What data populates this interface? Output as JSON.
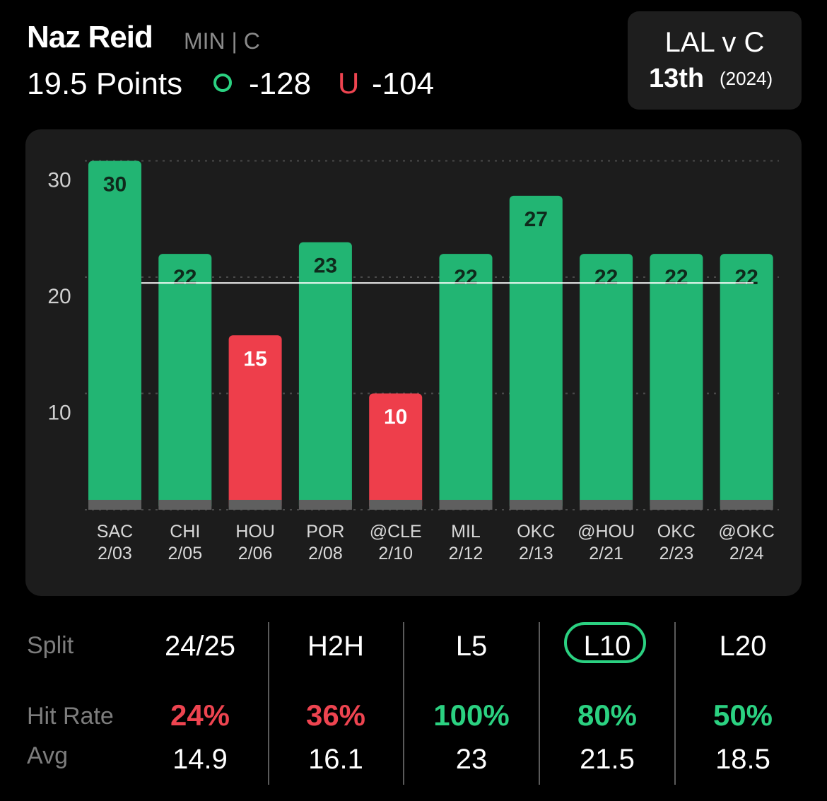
{
  "header": {
    "player_name": "Naz Reid",
    "player_meta": "MIN | C",
    "prop_line": "19.5 Points",
    "over_symbol": "O",
    "over_odds": "-128",
    "under_symbol": "U",
    "under_odds": "-104"
  },
  "matchup": {
    "title": "LAL v C",
    "rank": "13th",
    "year": "(2024)"
  },
  "colors": {
    "over": "#2bd181",
    "under": "#ee4450",
    "bar_green": "#22b573",
    "bar_red": "#ee3e4b",
    "line": "#ffffff"
  },
  "chart_data": {
    "type": "bar",
    "categories": [
      "SAC",
      "CHI",
      "HOU",
      "POR",
      "@CLE",
      "MIL",
      "OKC",
      "@HOU",
      "OKC",
      "@OKC"
    ],
    "dates": [
      "2/03",
      "2/05",
      "2/06",
      "2/08",
      "2/10",
      "2/12",
      "2/13",
      "2/21",
      "2/23",
      "2/24"
    ],
    "values": [
      30,
      22,
      15,
      23,
      10,
      22,
      27,
      22,
      22,
      22
    ],
    "threshold": 19.5,
    "yticks": [
      10,
      20,
      30
    ],
    "ylim": [
      0,
      30
    ],
    "grid": true
  },
  "splits": {
    "labels": {
      "split": "Split",
      "hit_rate": "Hit Rate",
      "avg": "Avg"
    },
    "columns": [
      {
        "name": "24/25",
        "hit_rate": "24%",
        "hit_color": "#ee4450",
        "avg": "14.9"
      },
      {
        "name": "H2H",
        "hit_rate": "36%",
        "hit_color": "#ee4450",
        "avg": "16.1"
      },
      {
        "name": "L5",
        "hit_rate": "100%",
        "hit_color": "#2bd181",
        "avg": "23"
      },
      {
        "name": "L10",
        "hit_rate": "80%",
        "hit_color": "#2bd181",
        "avg": "21.5"
      },
      {
        "name": "L20",
        "hit_rate": "50%",
        "hit_color": "#2bd181",
        "avg": "18.5"
      }
    ],
    "selected": "L10"
  }
}
